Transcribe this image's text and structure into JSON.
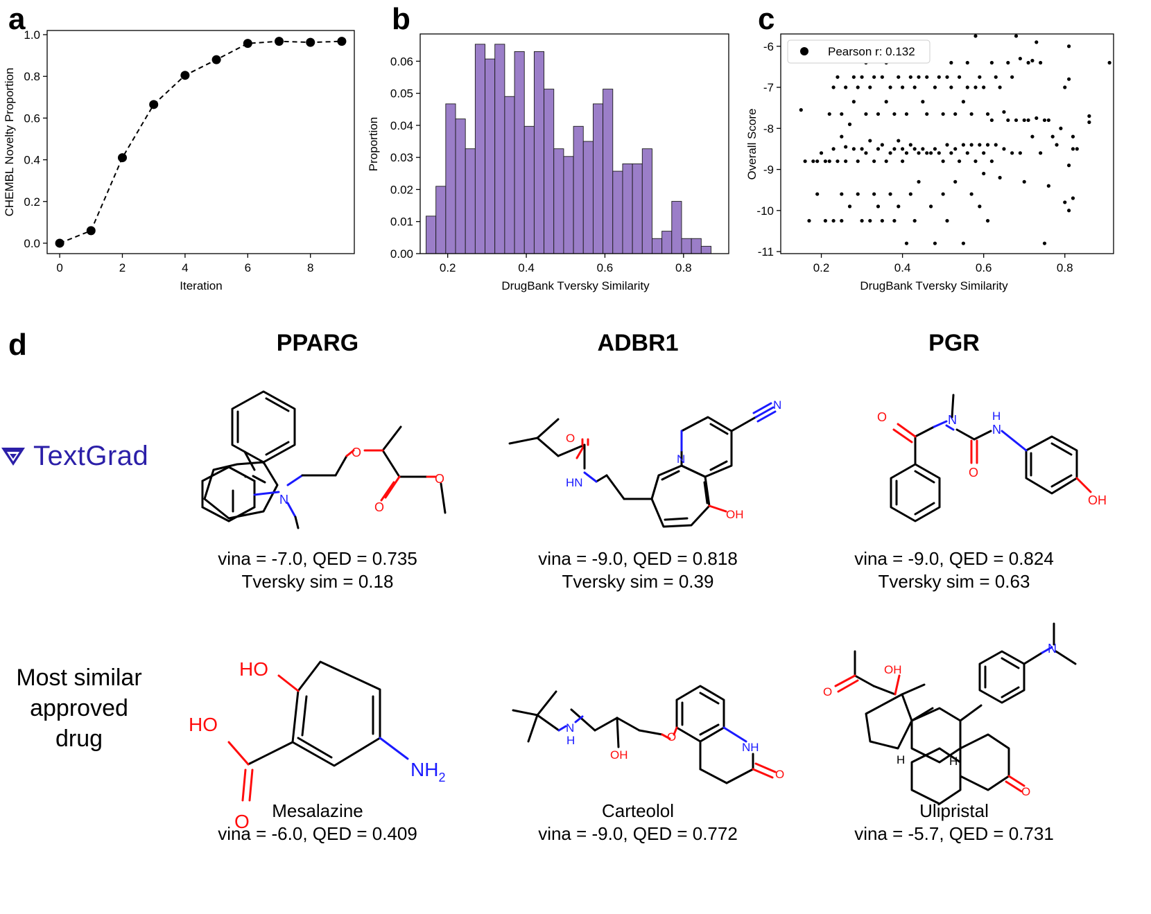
{
  "panel_letters": {
    "a": "a",
    "b": "b",
    "c": "c",
    "d": "d"
  },
  "chart_data": [
    {
      "type": "line",
      "panel": "a",
      "xlabel": "Iteration",
      "ylabel": "CHEMBL Novelty Proportion",
      "xlim": [
        -0.4,
        9.4
      ],
      "ylim": [
        -0.05,
        1.02
      ],
      "xticks": [
        0,
        2,
        4,
        6,
        8
      ],
      "xtick_labels": [
        "0",
        "2",
        "4",
        "6",
        "8"
      ],
      "yticks": [
        0.0,
        0.2,
        0.4,
        0.6,
        0.8,
        1.0
      ],
      "ytick_labels": [
        "0.0",
        "0.2",
        "0.4",
        "0.6",
        "0.8",
        "1.0"
      ],
      "x": [
        0,
        1,
        2,
        3,
        4,
        5,
        6,
        7,
        8,
        9
      ],
      "y": [
        0.0,
        0.06,
        0.41,
        0.665,
        0.805,
        0.88,
        0.958,
        0.968,
        0.963,
        0.968
      ],
      "style": "dashed line with circle markers",
      "color": "#000000"
    },
    {
      "type": "bar",
      "panel": "b",
      "xlabel": "DrugBank Tversky Similarity",
      "ylabel": "Proportion",
      "xlim": [
        0.13,
        0.915
      ],
      "ylim": [
        0,
        0.0685
      ],
      "xticks": [
        0.2,
        0.4,
        0.6,
        0.8
      ],
      "xtick_labels": [
        "0.2",
        "0.4",
        "0.6",
        "0.8"
      ],
      "yticks": [
        0.0,
        0.01,
        0.02,
        0.03,
        0.04,
        0.05,
        0.06
      ],
      "ytick_labels": [
        "0.00",
        "0.01",
        "0.02",
        "0.03",
        "0.04",
        "0.05",
        "0.06"
      ],
      "bin_start": 0.145,
      "bin_width": 0.025,
      "values": [
        0.0117,
        0.021,
        0.0467,
        0.042,
        0.0327,
        0.0653,
        0.0607,
        0.0653,
        0.049,
        0.063,
        0.0397,
        0.063,
        0.0513,
        0.0327,
        0.0303,
        0.0397,
        0.035,
        0.0467,
        0.0513,
        0.0257,
        0.028,
        0.028,
        0.0327,
        0.0047,
        0.007,
        0.0163,
        0.0047,
        0.0047,
        0.0023
      ],
      "color": "#9b7ec8",
      "edge_color": "#1a1a1a"
    },
    {
      "type": "scatter",
      "panel": "c",
      "xlabel": "DrugBank Tversky Similarity",
      "ylabel": "Overall Score",
      "xlim": [
        0.1,
        0.92
      ],
      "ylim": [
        -11.05,
        -5.7
      ],
      "xticks": [
        0.2,
        0.4,
        0.6,
        0.8
      ],
      "xtick_labels": [
        "0.2",
        "0.4",
        "0.6",
        "0.8"
      ],
      "yticks": [
        -6,
        -7,
        -8,
        -9,
        -10,
        -11
      ],
      "ytick_labels": [
        "-6",
        "-7",
        "-8",
        "-9",
        "-10",
        "-11"
      ],
      "legend": "Pearson r: 0.132",
      "legend_position": "top-left",
      "points": [
        [
          0.15,
          -7.55
        ],
        [
          0.16,
          -8.8
        ],
        [
          0.17,
          -10.25
        ],
        [
          0.18,
          -8.8
        ],
        [
          0.19,
          -8.8
        ],
        [
          0.19,
          -9.6
        ],
        [
          0.2,
          -8.6
        ],
        [
          0.21,
          -8.8
        ],
        [
          0.21,
          -10.25
        ],
        [
          0.22,
          -7.65
        ],
        [
          0.22,
          -8.8
        ],
        [
          0.23,
          -7.0
        ],
        [
          0.23,
          -8.5
        ],
        [
          0.23,
          -10.25
        ],
        [
          0.24,
          -6.75
        ],
        [
          0.24,
          -8.8
        ],
        [
          0.25,
          -7.65
        ],
        [
          0.25,
          -8.2
        ],
        [
          0.25,
          -9.6
        ],
        [
          0.25,
          -10.25
        ],
        [
          0.26,
          -7.0
        ],
        [
          0.26,
          -8.45
        ],
        [
          0.26,
          -8.8
        ],
        [
          0.27,
          -7.9
        ],
        [
          0.27,
          -9.9
        ],
        [
          0.28,
          -6.75
        ],
        [
          0.28,
          -7.35
        ],
        [
          0.28,
          -8.5
        ],
        [
          0.29,
          -7.0
        ],
        [
          0.29,
          -8.8
        ],
        [
          0.29,
          -9.6
        ],
        [
          0.3,
          -6.75
        ],
        [
          0.3,
          -8.5
        ],
        [
          0.3,
          -10.25
        ],
        [
          0.31,
          -6.4
        ],
        [
          0.31,
          -7.65
        ],
        [
          0.31,
          -8.6
        ],
        [
          0.32,
          -7.0
        ],
        [
          0.32,
          -8.3
        ],
        [
          0.32,
          -10.25
        ],
        [
          0.33,
          -6.75
        ],
        [
          0.33,
          -8.8
        ],
        [
          0.33,
          -9.6
        ],
        [
          0.34,
          -7.65
        ],
        [
          0.34,
          -8.5
        ],
        [
          0.34,
          -9.9
        ],
        [
          0.35,
          -6.75
        ],
        [
          0.35,
          -8.4
        ],
        [
          0.35,
          -10.25
        ],
        [
          0.36,
          -6.4
        ],
        [
          0.36,
          -7.35
        ],
        [
          0.36,
          -8.8
        ],
        [
          0.37,
          -7.0
        ],
        [
          0.37,
          -8.6
        ],
        [
          0.37,
          -9.6
        ],
        [
          0.38,
          -7.65
        ],
        [
          0.38,
          -8.5
        ],
        [
          0.38,
          -10.25
        ],
        [
          0.39,
          -6.75
        ],
        [
          0.39,
          -8.3
        ],
        [
          0.39,
          -9.9
        ],
        [
          0.4,
          -7.0
        ],
        [
          0.4,
          -8.5
        ],
        [
          0.4,
          -8.8
        ],
        [
          0.41,
          -7.65
        ],
        [
          0.41,
          -8.6
        ],
        [
          0.41,
          -10.8
        ],
        [
          0.42,
          -6.75
        ],
        [
          0.42,
          -8.4
        ],
        [
          0.42,
          -9.6
        ],
        [
          0.43,
          -7.0
        ],
        [
          0.43,
          -8.5
        ],
        [
          0.43,
          -10.25
        ],
        [
          0.44,
          -6.75
        ],
        [
          0.44,
          -8.6
        ],
        [
          0.44,
          -9.3
        ],
        [
          0.45,
          -7.35
        ],
        [
          0.45,
          -8.5
        ],
        [
          0.46,
          -6.75
        ],
        [
          0.46,
          -7.65
        ],
        [
          0.46,
          -8.6
        ],
        [
          0.47,
          -8.6
        ],
        [
          0.47,
          -9.9
        ],
        [
          0.48,
          -7.0
        ],
        [
          0.48,
          -8.5
        ],
        [
          0.48,
          -10.8
        ],
        [
          0.49,
          -6.75
        ],
        [
          0.49,
          -8.6
        ],
        [
          0.5,
          -7.65
        ],
        [
          0.5,
          -8.8
        ],
        [
          0.5,
          -9.6
        ],
        [
          0.51,
          -6.75
        ],
        [
          0.51,
          -8.4
        ],
        [
          0.51,
          -10.25
        ],
        [
          0.52,
          -6.4
        ],
        [
          0.52,
          -7.0
        ],
        [
          0.52,
          -8.6
        ],
        [
          0.53,
          -7.65
        ],
        [
          0.53,
          -8.5
        ],
        [
          0.53,
          -9.3
        ],
        [
          0.54,
          -6.75
        ],
        [
          0.54,
          -8.8
        ],
        [
          0.55,
          -7.35
        ],
        [
          0.55,
          -8.4
        ],
        [
          0.55,
          -10.8
        ],
        [
          0.56,
          -6.4
        ],
        [
          0.56,
          -7.0
        ],
        [
          0.56,
          -8.6
        ],
        [
          0.57,
          -7.65
        ],
        [
          0.57,
          -8.4
        ],
        [
          0.57,
          -9.6
        ],
        [
          0.58,
          -5.75
        ],
        [
          0.58,
          -7.0
        ],
        [
          0.58,
          -8.8
        ],
        [
          0.59,
          -6.75
        ],
        [
          0.59,
          -8.4
        ],
        [
          0.59,
          -9.9
        ],
        [
          0.6,
          -7.0
        ],
        [
          0.6,
          -8.6
        ],
        [
          0.6,
          -9.1
        ],
        [
          0.61,
          -7.65
        ],
        [
          0.61,
          -8.4
        ],
        [
          0.61,
          -10.25
        ],
        [
          0.62,
          -6.4
        ],
        [
          0.62,
          -7.8
        ],
        [
          0.62,
          -8.8
        ],
        [
          0.63,
          -6.75
        ],
        [
          0.63,
          -8.4
        ],
        [
          0.64,
          -7.0
        ],
        [
          0.64,
          -9.2
        ],
        [
          0.65,
          -7.6
        ],
        [
          0.65,
          -8.5
        ],
        [
          0.66,
          -6.4
        ],
        [
          0.66,
          -7.8
        ],
        [
          0.67,
          -6.75
        ],
        [
          0.67,
          -8.6
        ],
        [
          0.68,
          -5.75
        ],
        [
          0.68,
          -7.8
        ],
        [
          0.69,
          -6.3
        ],
        [
          0.69,
          -8.6
        ],
        [
          0.7,
          -7.8
        ],
        [
          0.7,
          -9.3
        ],
        [
          0.71,
          -6.4
        ],
        [
          0.71,
          -7.8
        ],
        [
          0.72,
          -6.35
        ],
        [
          0.72,
          -8.2
        ],
        [
          0.73,
          -5.9
        ],
        [
          0.73,
          -7.75
        ],
        [
          0.74,
          -6.4
        ],
        [
          0.74,
          -8.6
        ],
        [
          0.75,
          -7.8
        ],
        [
          0.75,
          -10.8
        ],
        [
          0.76,
          -7.8
        ],
        [
          0.76,
          -9.4
        ],
        [
          0.77,
          -8.2
        ],
        [
          0.78,
          -8.4
        ],
        [
          0.79,
          -8.0
        ],
        [
          0.8,
          -7.0
        ],
        [
          0.8,
          -9.8
        ],
        [
          0.81,
          -6.0
        ],
        [
          0.81,
          -6.8
        ],
        [
          0.81,
          -8.9
        ],
        [
          0.81,
          -10.0
        ],
        [
          0.82,
          -8.2
        ],
        [
          0.82,
          -8.5
        ],
        [
          0.82,
          -9.7
        ],
        [
          0.83,
          -8.5
        ],
        [
          0.86,
          -7.7
        ],
        [
          0.86,
          -7.85
        ],
        [
          0.91,
          -6.4
        ]
      ],
      "color": "#000000"
    }
  ],
  "panel_d": {
    "targets": [
      {
        "name": "PPARG",
        "generated_caption_line1": "vina = -7.0, QED = 0.735",
        "generated_caption_line2": "Tversky sim = 0.18",
        "approved_name": "Mesalazine",
        "approved_caption": "vina = -6.0, QED = 0.409"
      },
      {
        "name": "ADBR1",
        "generated_caption_line1": "vina = -9.0, QED = 0.818",
        "generated_caption_line2": "Tversky sim = 0.39",
        "approved_name": "Carteolol",
        "approved_caption": "vina = -9.0, QED = 0.772"
      },
      {
        "name": "PGR",
        "generated_caption_line1": "vina = -9.0, QED = 0.824",
        "generated_caption_line2": "Tversky sim = 0.63",
        "approved_name": "Ulipristal",
        "approved_caption": "vina = -5.7, QED = 0.731"
      }
    ],
    "logo_text": "TextGrad",
    "row2_label_lines": [
      "Most similar",
      "approved",
      "drug"
    ],
    "atom_labels": {
      "O": "O",
      "N": "N",
      "OH": "OH",
      "HO": "HO",
      "HN": "HN",
      "NH": "NH",
      "H": "H",
      "NH2": "NH",
      "NH2_sub": "2"
    },
    "colors": {
      "oxygen": "#ff0d0d",
      "nitrogen": "#1a1aff",
      "bond": "#000000",
      "logo": "#2b1fa8"
    }
  }
}
